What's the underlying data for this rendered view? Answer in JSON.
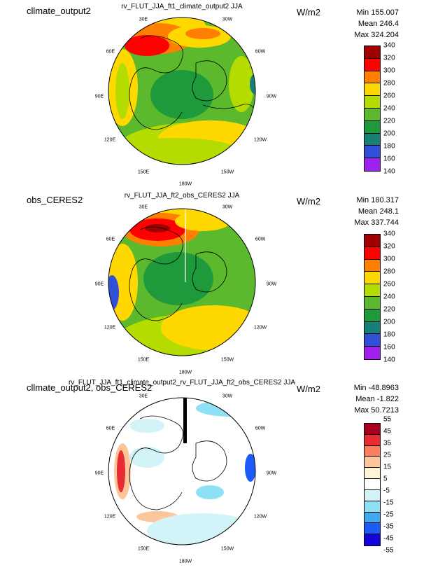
{
  "colors": {
    "seq": [
      "#a00000",
      "#ff0000",
      "#ff8000",
      "#ffd800",
      "#b4dc00",
      "#5cb82c",
      "#1e9a3c",
      "#168078",
      "#3050d8",
      "#a020f0"
    ],
    "diff": [
      "#a8001e",
      "#e82c32",
      "#fc7e5a",
      "#fdc69a",
      "#fff3d8",
      "#ffffff",
      "#d2f4f8",
      "#8ee0f4",
      "#40aaf0",
      "#1e5af8",
      "#1404dc"
    ]
  },
  "panels": [
    {
      "case_label": "cllmate_output2",
      "title": "rv_FLUT_JJA_ft1_climate_output2  JJA",
      "units": "W/m2",
      "stats": [
        "Min 155.007",
        "Mean 246.4",
        "Max 324.204"
      ],
      "colorbar_labels": [
        "340",
        "320",
        "300",
        "280",
        "260",
        "240",
        "220",
        "200",
        "180",
        "160",
        "140"
      ],
      "lon_labels": [
        "30E",
        "30W",
        "60E",
        "60W",
        "90E",
        "90W",
        "120E",
        "120W",
        "150E",
        "150W",
        "180W"
      ]
    },
    {
      "case_label": "obs_CERES2",
      "title": "rv_FLUT_JJA_ft2_obs_CERES2  JJA",
      "units": "W/m2",
      "stats": [
        "Min 180.317",
        "Mean 248.1",
        "Max 337.744"
      ],
      "colorbar_labels": [
        "340",
        "320",
        "300",
        "280",
        "260",
        "240",
        "220",
        "200",
        "180",
        "160",
        "140"
      ],
      "lon_labels": [
        "30E",
        "30W",
        "60E",
        "60W",
        "90E",
        "90W",
        "120E",
        "120W",
        "150E",
        "150W",
        "180W"
      ]
    },
    {
      "case_label": "cllmate_output2, obs_CERES2",
      "title": "rv_FLUT_JJA_ft1_climate_output2_rv_FLUT_JJA_ft2_obs_CERES2  JJA",
      "units": "W/m2",
      "stats": [
        "Min -48.8963",
        "Mean -1.822",
        "Max 50.7213"
      ],
      "colorbar_labels": [
        "55",
        "45",
        "35",
        "25",
        "15",
        "5",
        "-5",
        "-15",
        "-25",
        "-35",
        "-45",
        "-55"
      ],
      "lon_labels": [
        "30E",
        "30W",
        "60E",
        "60W",
        "90E",
        "90W",
        "120E",
        "120W",
        "150E",
        "150W",
        "180W"
      ]
    }
  ]
}
